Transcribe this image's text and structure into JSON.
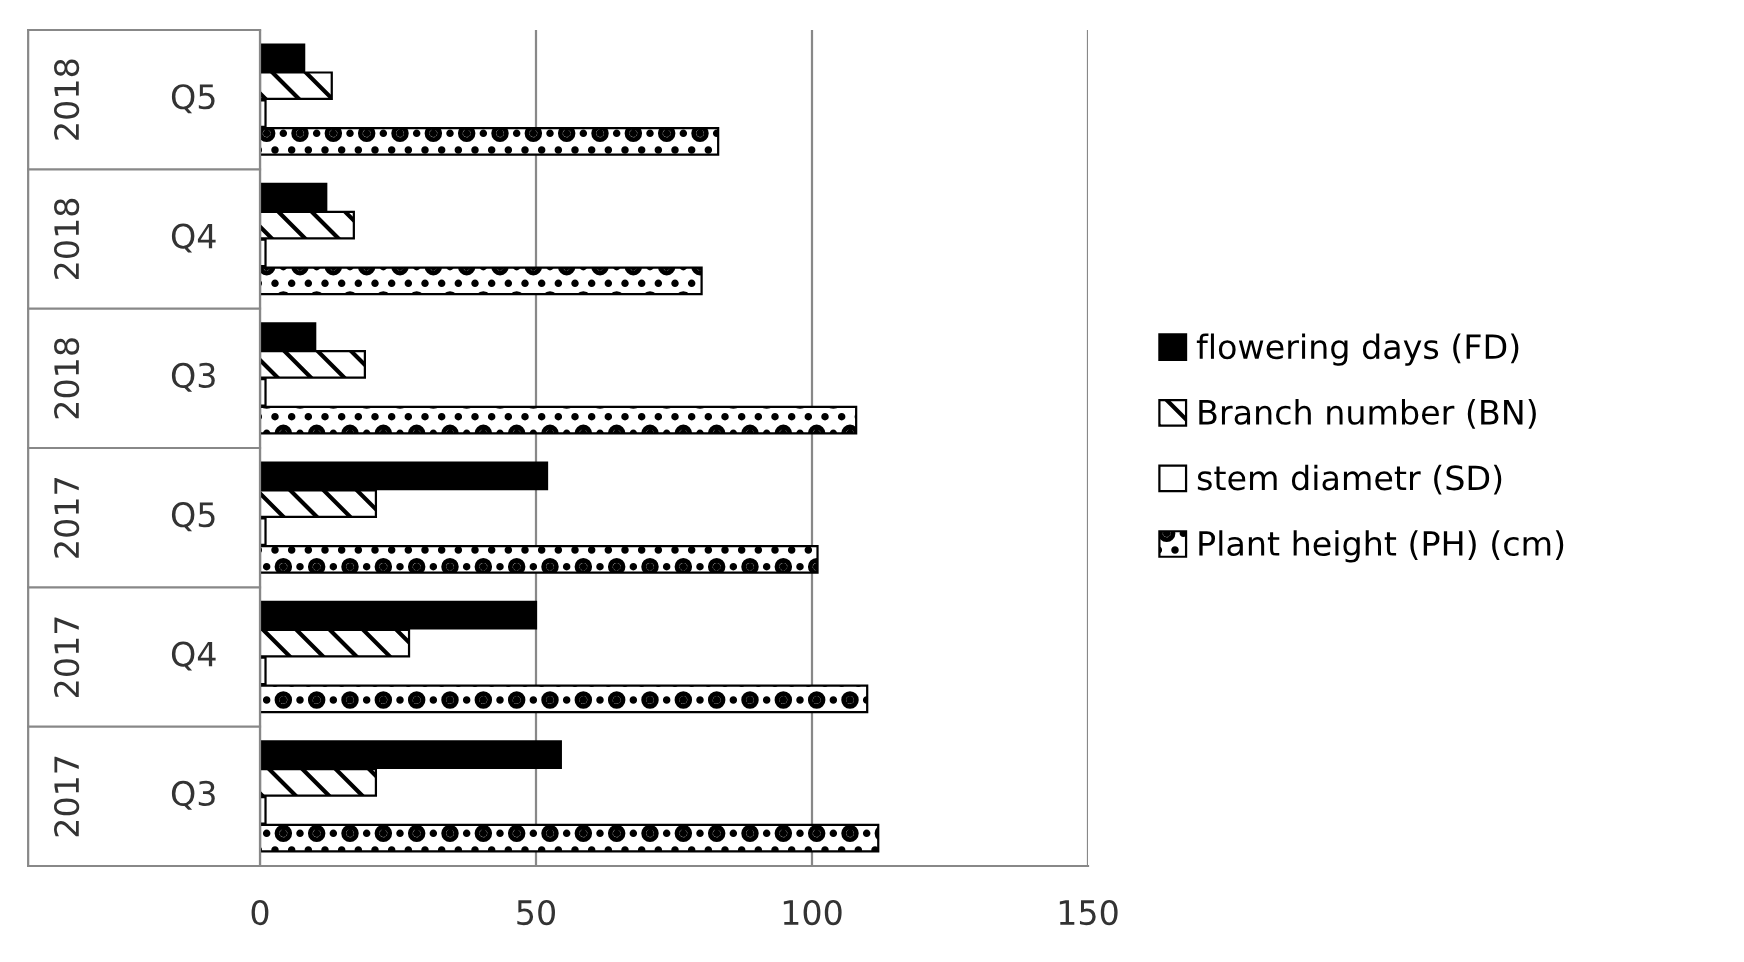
{
  "chart_data": {
    "type": "bar",
    "orientation": "horizontal",
    "categories": [
      "2018 Q5",
      "2018 Q4",
      "2018 Q3",
      "2017 Q5",
      "2017 Q4",
      "2017 Q3"
    ],
    "series": [
      {
        "name": "flowering days (FD)",
        "color": "#000000",
        "values": [
          8,
          12,
          10,
          52,
          50,
          54.5
        ]
      },
      {
        "name": "Branch number (BN)",
        "color": "#000000",
        "values": [
          13,
          17,
          19,
          21,
          27,
          21
        ]
      },
      {
        "name": "stem diametr (SD)",
        "color": "#ffffff",
        "values": [
          1,
          1,
          1,
          1,
          1,
          1
        ]
      },
      {
        "name": "Plant height (PH) (cm)",
        "color": "#000000",
        "values": [
          83,
          80,
          108,
          101,
          110,
          112
        ]
      }
    ],
    "xlim": [
      0,
      150
    ],
    "xticks": [
      0,
      50,
      100,
      150
    ],
    "grid": "x",
    "legend": "right"
  }
}
